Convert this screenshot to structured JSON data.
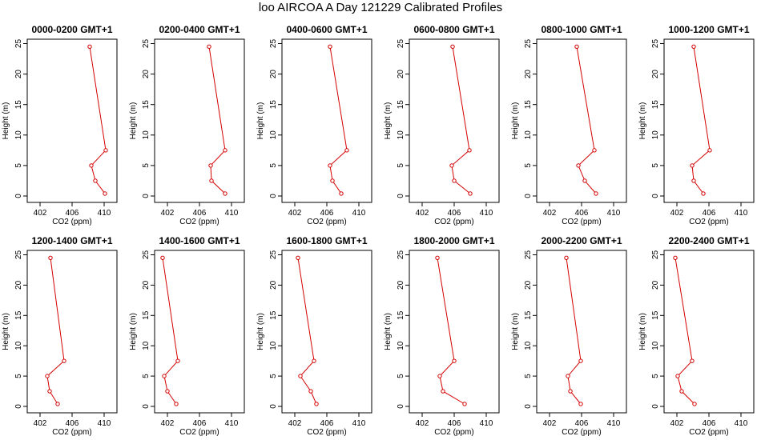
{
  "title": "loo AIRCOA A  Day 121229  Calibrated Profiles",
  "colors": {
    "line": "#d40000",
    "axis": "#000000"
  },
  "chart_data": [
    {
      "type": "line",
      "title": "0000-0200 GMT+1",
      "xlabel": "CO2 (ppm)",
      "ylabel": "Height (m)",
      "xlim": [
        401,
        411
      ],
      "ylim": [
        0,
        25
      ],
      "xticks": [
        402,
        406,
        410
      ],
      "yticks": [
        0,
        5,
        10,
        15,
        20,
        25
      ],
      "x": [
        410.1,
        408.9,
        408.4,
        410.2,
        408.2
      ],
      "y": [
        0.4,
        2.5,
        5,
        7.5,
        24.5
      ]
    },
    {
      "type": "line",
      "title": "0200-0400 GMT+1",
      "xlabel": "CO2 (ppm)",
      "ylabel": "Height (m)",
      "xlim": [
        401,
        411
      ],
      "ylim": [
        0,
        25
      ],
      "xticks": [
        402,
        406,
        410
      ],
      "yticks": [
        0,
        5,
        10,
        15,
        20,
        25
      ],
      "x": [
        409.2,
        407.5,
        407.4,
        409.2,
        407.2
      ],
      "y": [
        0.4,
        2.5,
        5,
        7.5,
        24.5
      ]
    },
    {
      "type": "line",
      "title": "0400-0600 GMT+1",
      "xlabel": "CO2 (ppm)",
      "ylabel": "Height (m)",
      "xlim": [
        401,
        411
      ],
      "ylim": [
        0,
        25
      ],
      "xticks": [
        402,
        406,
        410
      ],
      "yticks": [
        0,
        5,
        10,
        15,
        20,
        25
      ],
      "x": [
        407.8,
        406.7,
        406.4,
        408.5,
        406.4
      ],
      "y": [
        0.4,
        2.5,
        5,
        7.5,
        24.5
      ]
    },
    {
      "type": "line",
      "title": "0600-0800 GMT+1",
      "xlabel": "CO2 (ppm)",
      "ylabel": "Height (m)",
      "xlim": [
        401,
        411
      ],
      "ylim": [
        0,
        25
      ],
      "xticks": [
        402,
        406,
        410
      ],
      "yticks": [
        0,
        5,
        10,
        15,
        20,
        25
      ],
      "x": [
        408,
        406,
        405.7,
        407.9,
        405.8
      ],
      "y": [
        0.4,
        2.5,
        5,
        7.5,
        24.5
      ]
    },
    {
      "type": "line",
      "title": "0800-1000 GMT+1",
      "xlabel": "CO2 (ppm)",
      "ylabel": "Height (m)",
      "xlim": [
        401,
        411
      ],
      "ylim": [
        0,
        25
      ],
      "xticks": [
        402,
        406,
        410
      ],
      "yticks": [
        0,
        5,
        10,
        15,
        20,
        25
      ],
      "x": [
        407.8,
        406.4,
        405.6,
        407.6,
        405.4
      ],
      "y": [
        0.4,
        2.5,
        5,
        7.5,
        24.5
      ]
    },
    {
      "type": "line",
      "title": "1000-1200 GMT+1",
      "xlabel": "CO2 (ppm)",
      "ylabel": "Height (m)",
      "xlim": [
        401,
        411
      ],
      "ylim": [
        0,
        25
      ],
      "xticks": [
        402,
        406,
        410
      ],
      "yticks": [
        0,
        5,
        10,
        15,
        20,
        25
      ],
      "x": [
        405.3,
        404.1,
        403.9,
        406.1,
        404.1
      ],
      "y": [
        0.4,
        2.5,
        5,
        7.5,
        24.5
      ]
    },
    {
      "type": "line",
      "title": "1200-1400 GMT+1",
      "xlabel": "CO2 (ppm)",
      "ylabel": "Height (m)",
      "xlim": [
        401,
        411
      ],
      "ylim": [
        0,
        25
      ],
      "xticks": [
        402,
        406,
        410
      ],
      "yticks": [
        0,
        5,
        10,
        15,
        20,
        25
      ],
      "x": [
        404.2,
        403.2,
        402.9,
        405,
        403.3
      ],
      "y": [
        0.4,
        2.5,
        5,
        7.5,
        24.5
      ]
    },
    {
      "type": "line",
      "title": "1400-1600 GMT+1",
      "xlabel": "CO2 (ppm)",
      "ylabel": "Height (m)",
      "xlim": [
        401,
        411
      ],
      "ylim": [
        0,
        25
      ],
      "xticks": [
        402,
        406,
        410
      ],
      "yticks": [
        0,
        5,
        10,
        15,
        20,
        25
      ],
      "x": [
        403.1,
        402,
        401.6,
        403.3,
        401.4
      ],
      "y": [
        0.4,
        2.5,
        5,
        7.5,
        24.5
      ]
    },
    {
      "type": "line",
      "title": "1600-1800 GMT+1",
      "xlabel": "CO2 (ppm)",
      "ylabel": "Height (m)",
      "xlim": [
        401,
        411
      ],
      "ylim": [
        0,
        25
      ],
      "xticks": [
        402,
        406,
        410
      ],
      "yticks": [
        0,
        5,
        10,
        15,
        20,
        25
      ],
      "x": [
        404.7,
        404,
        402.7,
        404.4,
        402.4
      ],
      "y": [
        0.4,
        2.5,
        5,
        7.5,
        24.5
      ]
    },
    {
      "type": "line",
      "title": "1800-2000 GMT+1",
      "xlabel": "CO2 (ppm)",
      "ylabel": "Height (m)",
      "xlim": [
        401,
        411
      ],
      "ylim": [
        0,
        25
      ],
      "xticks": [
        402,
        406,
        410
      ],
      "yticks": [
        0,
        5,
        10,
        15,
        20,
        25
      ],
      "x": [
        407.3,
        404.6,
        404.2,
        406,
        403.9
      ],
      "y": [
        0.4,
        2.5,
        5,
        7.5,
        24.5
      ]
    },
    {
      "type": "line",
      "title": "2000-2200 GMT+1",
      "xlabel": "CO2 (ppm)",
      "ylabel": "Height (m)",
      "xlim": [
        401,
        411
      ],
      "ylim": [
        0,
        25
      ],
      "xticks": [
        402,
        406,
        410
      ],
      "yticks": [
        0,
        5,
        10,
        15,
        20,
        25
      ],
      "x": [
        405.9,
        404.6,
        404.3,
        405.9,
        404.1
      ],
      "y": [
        0.4,
        2.5,
        5,
        7.5,
        24.5
      ]
    },
    {
      "type": "line",
      "title": "2200-2400 GMT+1",
      "xlabel": "CO2 (ppm)",
      "ylabel": "Height (m)",
      "xlim": [
        401,
        411
      ],
      "ylim": [
        0,
        25
      ],
      "xticks": [
        402,
        406,
        410
      ],
      "yticks": [
        0,
        5,
        10,
        15,
        20,
        25
      ],
      "x": [
        404.2,
        402.6,
        402.1,
        403.9,
        401.8
      ],
      "y": [
        0.4,
        2.5,
        5,
        7.5,
        24.5
      ]
    }
  ]
}
